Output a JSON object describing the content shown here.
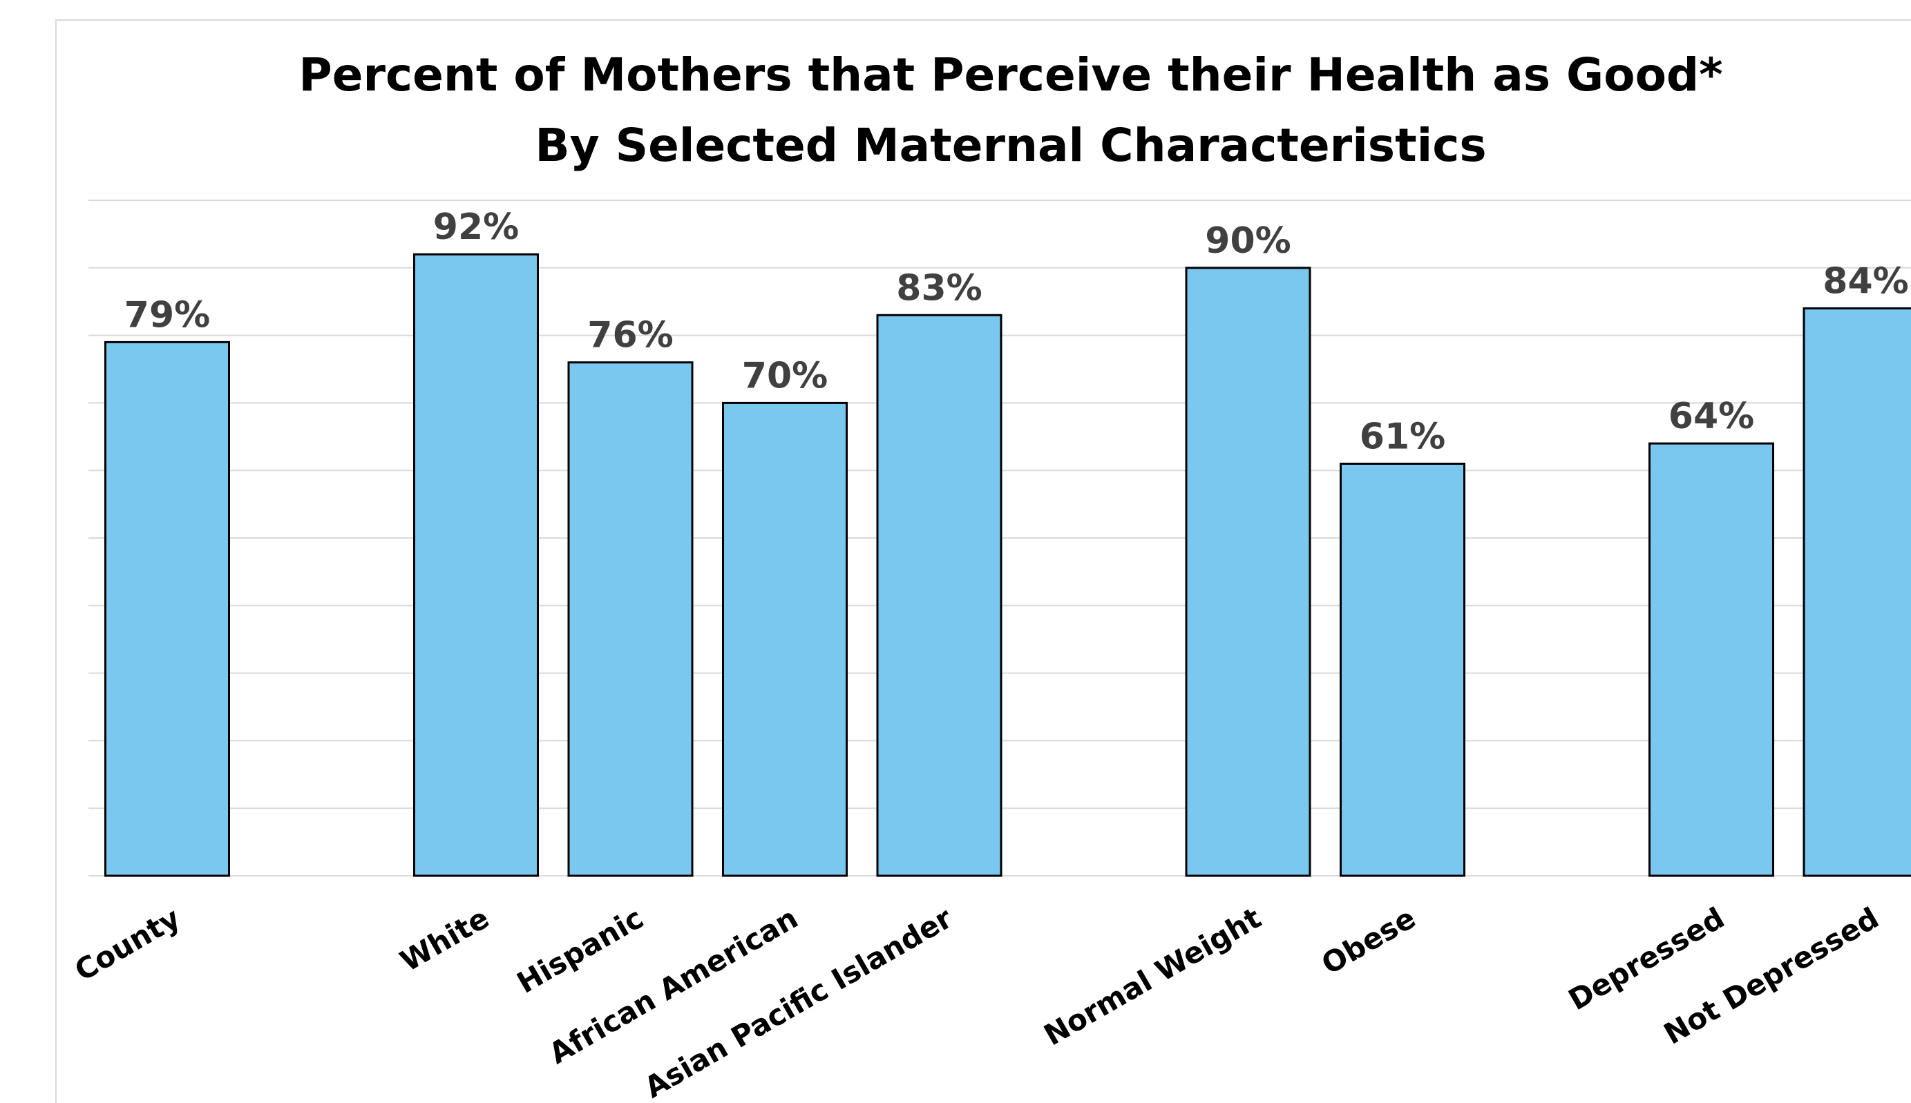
{
  "chart_data": {
    "type": "bar",
    "title": "Percent of Mothers that Perceive their Health as Good*",
    "subtitle": "By Selected Maternal Characteristics",
    "categories": [
      "County",
      "White",
      "Hispanic",
      "African American",
      "Asian Pacific Islander",
      "Normal Weight",
      "Obese",
      "Depressed",
      "Not Depressed"
    ],
    "groups": [
      [
        "County"
      ],
      [
        "White",
        "Hispanic",
        "African American",
        "Asian Pacific Islander"
      ],
      [
        "Normal Weight",
        "Obese"
      ],
      [
        "Depressed",
        "Not Depressed"
      ]
    ],
    "values": [
      79,
      92,
      76,
      70,
      83,
      90,
      61,
      64,
      84
    ],
    "data_labels": [
      "79%",
      "92%",
      "76%",
      "70%",
      "83%",
      "90%",
      "61%",
      "64%",
      "84%"
    ],
    "ylim": [
      0,
      100
    ],
    "xlabel": "",
    "ylabel": "",
    "grid": true,
    "legend": "none",
    "bar_color": "#7AC7EF",
    "bar_outline": "#000000"
  }
}
